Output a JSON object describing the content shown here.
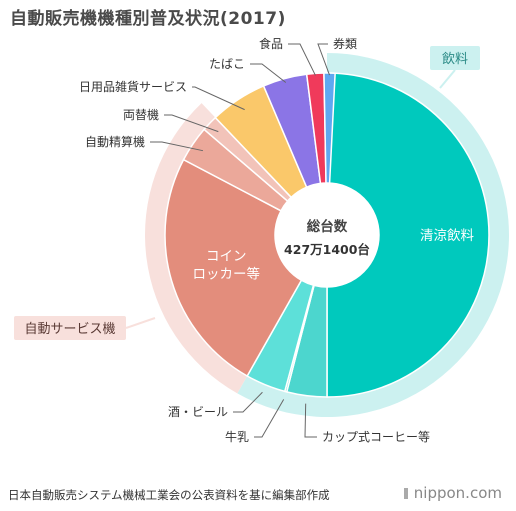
{
  "title": "自動販売機機種別普及状況(2017)",
  "footer": {
    "source": "日本自動販売システム機械工業会の公表資料を基に編集部作成",
    "brand": "nippon.com"
  },
  "chart_data": {
    "type": "pie",
    "title": "自動販売機機種別普及状況(2017)",
    "center_label": "総台数",
    "center_value": "427万1400台",
    "slices": [
      {
        "name": "清涼飲料",
        "share": 0.5,
        "color": "#00c9bd"
      },
      {
        "name": "カップ式コーヒー等",
        "share": 0.04,
        "color": "#4cd6ce"
      },
      {
        "name": "牛乳",
        "share": 0.002,
        "color": "#72e0da"
      },
      {
        "name": "酒・ビール",
        "share": 0.04,
        "color": "#5de0d9"
      },
      {
        "name": "コイン\nロッカー等",
        "share": 0.245,
        "color": "#e38d7c"
      },
      {
        "name": "自動精算機",
        "share": 0.036,
        "color": "#eba89a"
      },
      {
        "name": "両替機",
        "share": 0.016,
        "color": "#f2c3b9"
      },
      {
        "name": "日用品雑貨サービス",
        "share": 0.057,
        "color": "#fac86a"
      },
      {
        "name": "たばこ",
        "share": 0.044,
        "color": "#8b75e6"
      },
      {
        "name": "食品",
        "share": 0.017,
        "color": "#f03a5b"
      },
      {
        "name": "券類",
        "share": 0.011,
        "color": "#5fa8f0"
      }
    ],
    "groups": [
      {
        "name": "飲料",
        "color": "#ccf1f0",
        "label_bg": "#ccf1f0",
        "label_color": "#2a8a86"
      },
      {
        "name": "自動サービス機",
        "color": "#f8e0dc",
        "label_bg": "#f8e0dc",
        "label_color": "#5a3a35"
      }
    ]
  }
}
